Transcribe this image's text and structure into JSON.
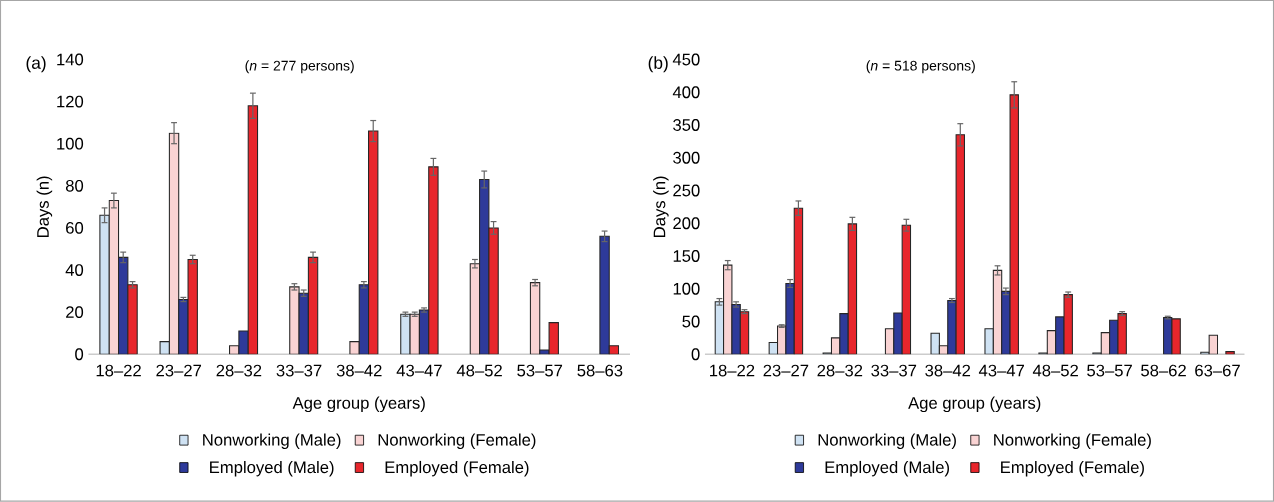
{
  "chart_data": [
    {
      "type": "bar",
      "title": "(a)",
      "subtitle": "(*n* = 277 persons)",
      "xlabel": "Age group (years)",
      "ylabel": "Days (n)",
      "categories": [
        "18–22",
        "23–27",
        "28–32",
        "33–37",
        "38–42",
        "43–47",
        "48–52",
        "53–57",
        "58–63"
      ],
      "ylim": [
        0,
        140
      ],
      "yticks": [
        0,
        20,
        40,
        60,
        80,
        100,
        120,
        140
      ],
      "legend": "bottom",
      "series": [
        {
          "name": "Nonworking (Male)",
          "color": "#cfe2f3",
          "values": [
            66,
            6,
            null,
            null,
            null,
            19,
            null,
            null,
            null
          ],
          "errors": [
            3.5,
            null,
            null,
            null,
            null,
            1,
            null,
            null,
            null
          ]
        },
        {
          "name": "Nonworking (Female)",
          "color": "#f9d3d3",
          "values": [
            73,
            105,
            4,
            32,
            6,
            19,
            43,
            34,
            null
          ],
          "errors": [
            3.5,
            5,
            null,
            1.5,
            null,
            1,
            2,
            1.5,
            null
          ]
        },
        {
          "name": "Employed (Male)",
          "color": "#2e3a9a",
          "values": [
            46,
            26,
            11,
            29,
            33,
            21,
            83,
            2,
            56
          ],
          "errors": [
            2.5,
            1,
            null,
            1.5,
            1.5,
            1,
            4,
            null,
            2.5
          ]
        },
        {
          "name": "Employed (Female)",
          "color": "#e8262c",
          "values": [
            33,
            45,
            118,
            46,
            106,
            89,
            60,
            15,
            4
          ],
          "errors": [
            1.5,
            2,
            6,
            2.5,
            5,
            4,
            3,
            null,
            null
          ]
        }
      ]
    },
    {
      "type": "bar",
      "title": "(b)",
      "subtitle": "(*n* = 518 persons)",
      "xlabel": "Age group (years)",
      "ylabel": "Days (n)",
      "categories": [
        "18–22",
        "23–27",
        "28–32",
        "33–37",
        "38–42",
        "43–47",
        "48–52",
        "53–57",
        "58–62",
        "63–67"
      ],
      "ylim": [
        0,
        450
      ],
      "yticks": [
        0,
        50,
        100,
        150,
        200,
        250,
        300,
        350,
        400,
        450
      ],
      "legend": "bottom",
      "series": [
        {
          "name": "Nonworking (Male)",
          "color": "#cfe2f3",
          "values": [
            80,
            18,
            2,
            null,
            32,
            39,
            2,
            2,
            null,
            3
          ],
          "errors": [
            5,
            null,
            null,
            null,
            null,
            null,
            null,
            null,
            null,
            null
          ]
        },
        {
          "name": "Nonworking (Female)",
          "color": "#f9d3d3",
          "values": [
            136,
            43,
            25,
            39,
            13,
            128,
            36,
            33,
            null,
            29
          ],
          "errors": [
            7,
            2,
            null,
            null,
            null,
            7,
            null,
            null,
            null,
            null
          ]
        },
        {
          "name": "Employed (Male)",
          "color": "#2e3a9a",
          "values": [
            76,
            108,
            62,
            63,
            82,
            96,
            57,
            52,
            56,
            null
          ],
          "errors": [
            4,
            6,
            null,
            null,
            3,
            5,
            null,
            null,
            2,
            null
          ]
        },
        {
          "name": "Employed (Female)",
          "color": "#e8262c",
          "values": [
            65,
            223,
            199,
            197,
            335,
            396,
            91,
            62,
            54,
            4
          ],
          "errors": [
            3,
            11,
            10,
            9,
            17,
            20,
            4,
            3,
            null,
            null
          ]
        }
      ]
    }
  ]
}
